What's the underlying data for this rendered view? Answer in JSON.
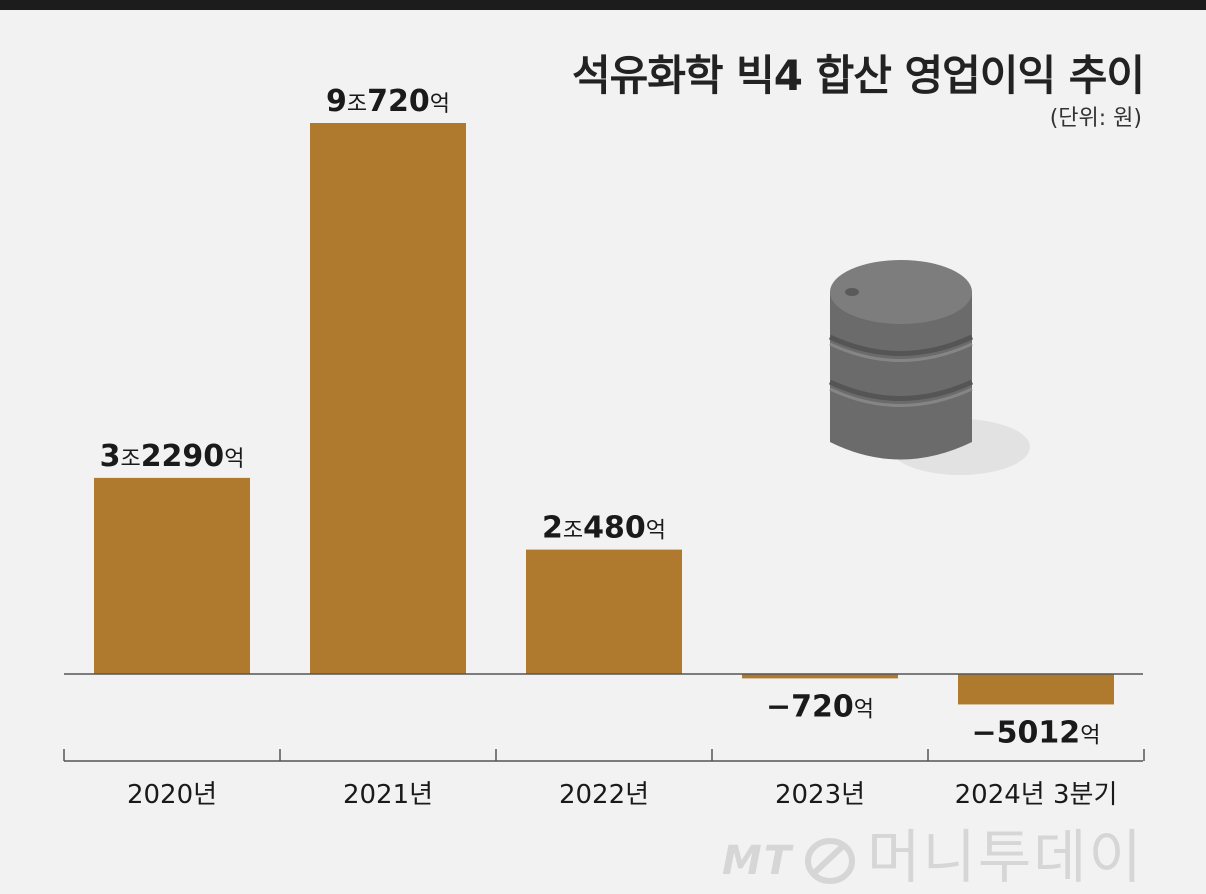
{
  "title": "석유화학 빅4 합산 영업이익 추이",
  "unit": "(단위: 원)",
  "colors": {
    "bar": "#b07a2e",
    "axis": "#555555",
    "barrel": "#6b6b6b"
  },
  "watermark": {
    "brand": "MT",
    "text": "머니투데이"
  },
  "chart_data": {
    "type": "bar",
    "title": "석유화학 빅4 합산 영업이익 추이",
    "unit": "(단위: 원)",
    "categories": [
      "2020년",
      "2021년",
      "2022년",
      "2023년",
      "2024년 3분기"
    ],
    "values": [
      32290,
      90720,
      20480,
      -720,
      -5012
    ],
    "value_unit": "억 원",
    "data_labels": [
      {
        "num": "3",
        "mid": "조",
        "num2": "2290",
        "suffix": "억"
      },
      {
        "num": "9",
        "mid": "조",
        "num2": "720",
        "suffix": "억"
      },
      {
        "num": "2",
        "mid": "조",
        "num2": "480",
        "suffix": "억"
      },
      {
        "num": "",
        "mid": "",
        "num2": "−720",
        "suffix": "억"
      },
      {
        "num": "",
        "mid": "",
        "num2": "−5012",
        "suffix": "억"
      }
    ],
    "grid": false
  }
}
